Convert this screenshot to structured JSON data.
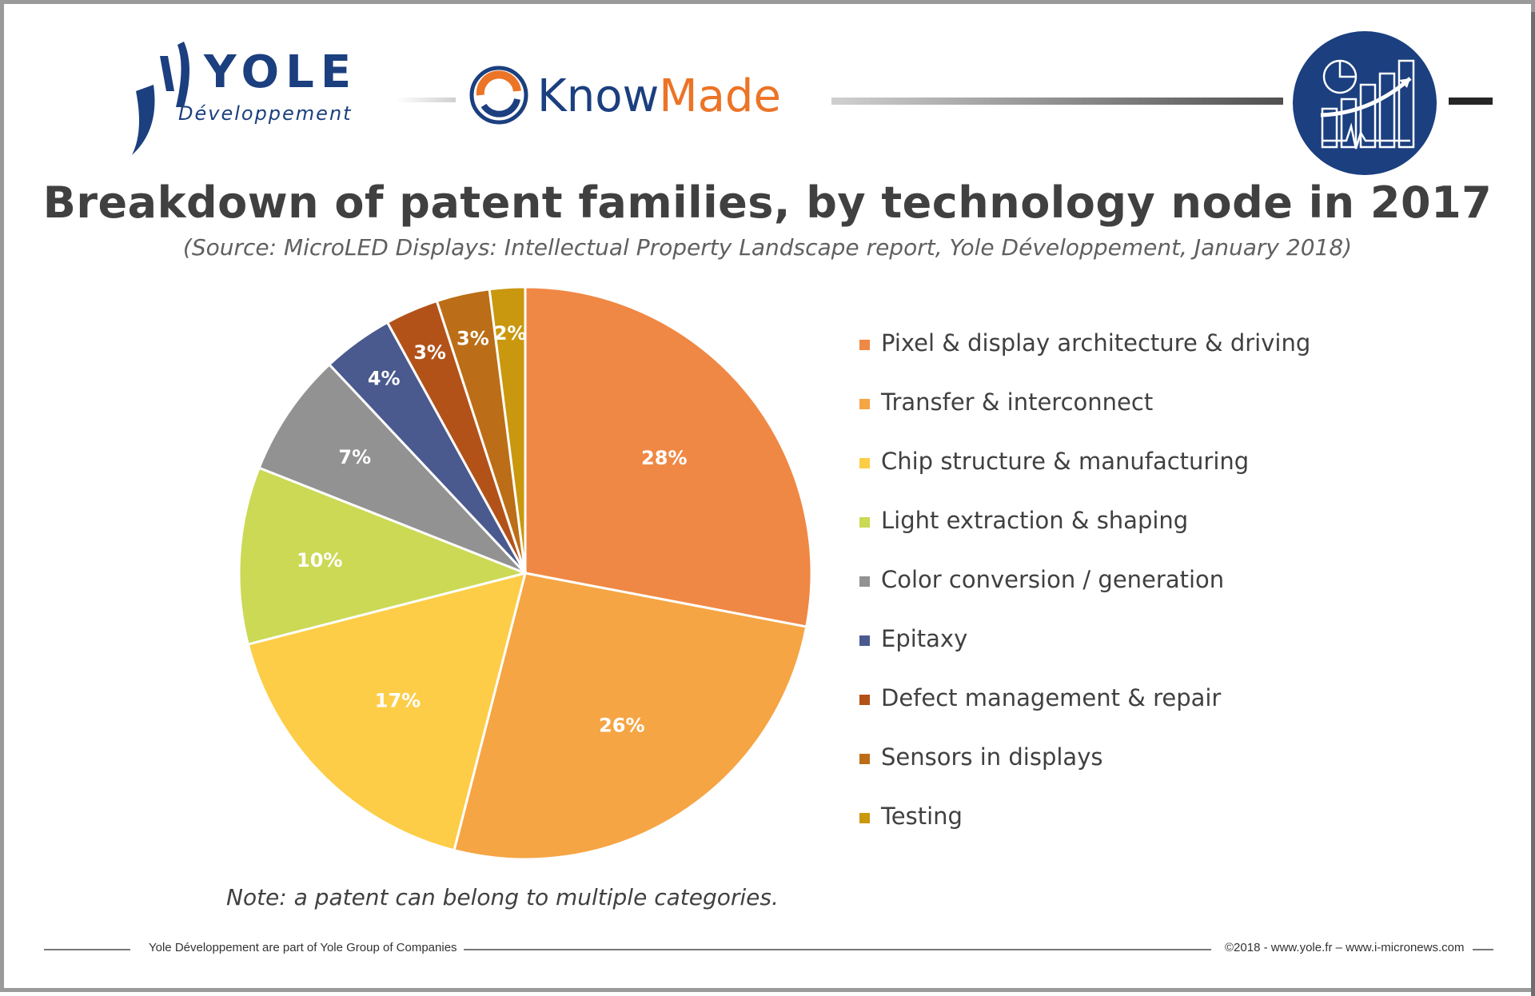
{
  "header": {
    "yole_logo": {
      "word": "YOLE",
      "sub": "Développement"
    },
    "knowmade_logo": {
      "know": "Know",
      "made": "Made"
    },
    "stats_icon": "bar-chart-trend-icon"
  },
  "title": "Breakdown of patent families, by technology node in 2017",
  "source": "(Source: MicroLED Displays: Intellectual Property Landscape report, Yole Développement, January 2018)",
  "note": "Note: a patent can belong to multiple categories.",
  "footer": {
    "left": "Yole Développement are part of Yole Group of Companies",
    "right": "©2018 - www.yole.fr – www.i-micronews.com"
  },
  "colors": {
    "brand_blue": "#1b3f7f",
    "brand_orange": "#ec7426",
    "text": "#404040"
  },
  "chart_data": {
    "type": "pie",
    "title": "Breakdown of patent families, by technology node in 2017",
    "legend_position": "right",
    "slices": [
      {
        "label": "Pixel & display architecture & driving",
        "value": 28,
        "display": "28%",
        "color": "#ef8844"
      },
      {
        "label": "Transfer & interconnect",
        "value": 26,
        "display": "26%",
        "color": "#f5a544"
      },
      {
        "label": "Chip structure & manufacturing",
        "value": 17,
        "display": "17%",
        "color": "#fdcd47"
      },
      {
        "label": "Light extraction & shaping",
        "value": 10,
        "display": "10%",
        "color": "#cbd955"
      },
      {
        "label": "Color conversion / generation",
        "value": 7,
        "display": "7%",
        "color": "#929292"
      },
      {
        "label": "Epitaxy",
        "value": 4,
        "display": "4%",
        "color": "#4a5a8e"
      },
      {
        "label": "Defect management & repair",
        "value": 3,
        "display": "3%",
        "color": "#b25219"
      },
      {
        "label": "Sensors in displays",
        "value": 3,
        "display": "3%",
        "color": "#bb6e17"
      },
      {
        "label": "Testing",
        "value": 2,
        "display": "2%",
        "color": "#c9980e"
      }
    ]
  }
}
